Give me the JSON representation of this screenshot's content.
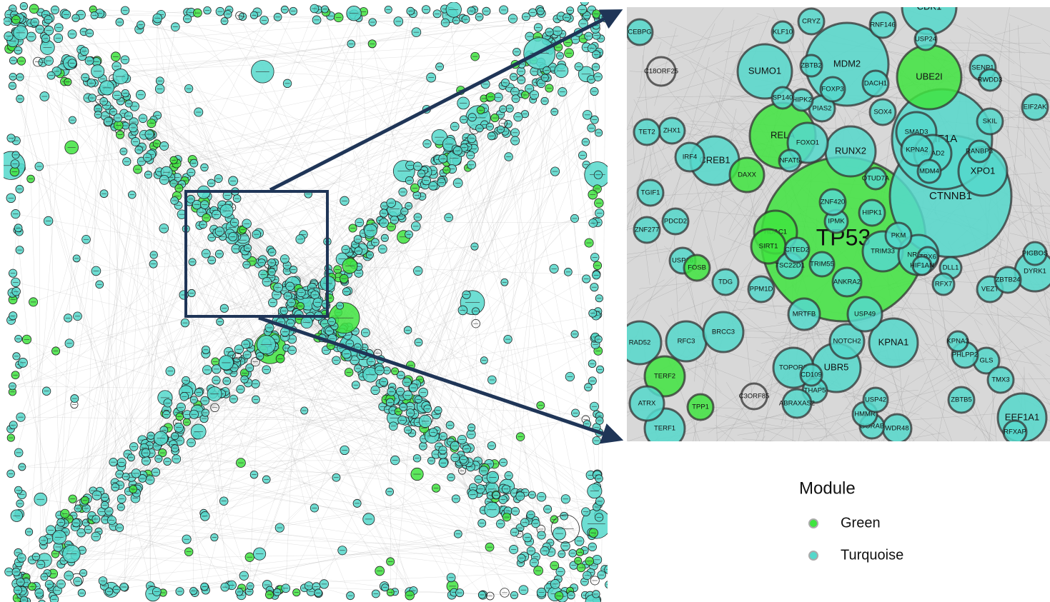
{
  "modules": [
    {
      "name": "Green",
      "color": "#3fe43f"
    },
    {
      "name": "Turquoise",
      "color": "#55d8cb"
    }
  ],
  "legend": {
    "title": "Module",
    "items": [
      {
        "name": "Green",
        "color": "#3fe43f"
      },
      {
        "name": "Turquoise",
        "color": "#55d8cb"
      }
    ]
  },
  "nodes": [
    {
      "label": "TP53",
      "module": 0
    },
    {
      "label": "CTNNB1",
      "module": 1
    },
    {
      "label": "HIF1A",
      "module": 1
    },
    {
      "label": "MDM2",
      "module": 1
    },
    {
      "label": "UBE2I",
      "module": 0
    },
    {
      "label": "RELA",
      "module": 0
    },
    {
      "label": "SUMO1",
      "module": 1
    },
    {
      "label": "RUNX2",
      "module": 1
    },
    {
      "label": "CREB1",
      "module": 1
    },
    {
      "label": "XPO1",
      "module": 1
    },
    {
      "label": "KPNA1",
      "module": 1
    },
    {
      "label": "UBR5",
      "module": 1
    },
    {
      "label": "EEF1A1",
      "module": 1
    },
    {
      "label": "CDK1",
      "module": 1
    },
    {
      "label": "FOXO1",
      "module": 1
    },
    {
      "label": "SMAD3",
      "module": 1
    },
    {
      "label": "SMAD2",
      "module": 1
    },
    {
      "label": "HDAC1",
      "module": 0
    },
    {
      "label": "TRIM33",
      "module": 1
    },
    {
      "label": "NR3C1",
      "module": 1
    },
    {
      "label": "TOPORS",
      "module": 1
    },
    {
      "label": "RAD52",
      "module": 1
    },
    {
      "label": "DYRK1",
      "module": 1
    },
    {
      "label": "TERF2",
      "module": 0
    },
    {
      "label": "TERF1",
      "module": 1
    },
    {
      "label": "RFC3",
      "module": 1
    },
    {
      "label": "BRCC3",
      "module": 1
    },
    {
      "label": "ATRX",
      "module": 1
    },
    {
      "label": "SIRT1",
      "module": 0
    },
    {
      "label": "DAXX",
      "module": 0
    },
    {
      "label": "KPNA2",
      "module": 1
    },
    {
      "label": "NOTCH2",
      "module": 1
    },
    {
      "label": "USP49",
      "module": 1
    },
    {
      "label": "MRTFB",
      "module": 1
    },
    {
      "label": "ANKRA2",
      "module": 1
    },
    {
      "label": "IRF4",
      "module": 1
    },
    {
      "label": "ZHX1",
      "module": 1
    },
    {
      "label": "TET2",
      "module": 1
    },
    {
      "label": "TGIF1",
      "module": 1
    },
    {
      "label": "ZNF277",
      "module": 1
    },
    {
      "label": "PDCD2",
      "module": 1
    },
    {
      "label": "USP16",
      "module": 1
    },
    {
      "label": "FOSB",
      "module": 0
    },
    {
      "label": "TDG",
      "module": 1
    },
    {
      "label": "PPM1D",
      "module": 1
    },
    {
      "label": "TSC22D1",
      "module": 1
    },
    {
      "label": "CITED2",
      "module": 1
    },
    {
      "label": "TRIM55",
      "module": 1
    },
    {
      "label": "IPMK",
      "module": 1
    },
    {
      "label": "ZNF420",
      "module": 1
    },
    {
      "label": "HIPK1",
      "module": 1
    },
    {
      "label": "PKM",
      "module": 1
    },
    {
      "label": "MDM4",
      "module": 1
    },
    {
      "label": "TBX6",
      "module": 1
    },
    {
      "label": "DLL1",
      "module": 1
    },
    {
      "label": "RFX7",
      "module": 1
    },
    {
      "label": "VEZT",
      "module": 1
    },
    {
      "label": "ZBTB24",
      "module": 1
    },
    {
      "label": "PIGBOS",
      "module": 1
    },
    {
      "label": "GLS",
      "module": 1
    },
    {
      "label": "TMX3",
      "module": 1
    },
    {
      "label": "PHLPP2",
      "module": 1
    },
    {
      "label": "KPNA3",
      "module": 1
    },
    {
      "label": "ZBTB5",
      "module": 1
    },
    {
      "label": "WDR48",
      "module": 1
    },
    {
      "label": "GORAB",
      "module": 1
    },
    {
      "label": "HMMR",
      "module": 1
    },
    {
      "label": "USP42",
      "module": 1
    },
    {
      "label": "THAP5",
      "module": 1
    },
    {
      "label": "ABRAXAS2",
      "module": 1
    },
    {
      "label": "C3ORF85",
      "module": null
    },
    {
      "label": "C18ORF25",
      "module": null
    },
    {
      "label": "CEBPG",
      "module": 1
    },
    {
      "label": "CRYZ",
      "module": 1
    },
    {
      "label": "KLF10",
      "module": 1
    },
    {
      "label": "RNF146",
      "module": 1
    },
    {
      "label": "USP24",
      "module": 1
    },
    {
      "label": "PIAS2",
      "module": 1
    },
    {
      "label": "SOX4",
      "module": 1
    },
    {
      "label": "DACH1",
      "module": 1
    },
    {
      "label": "SENP1",
      "module": 1
    },
    {
      "label": "RWDD3",
      "module": 1
    },
    {
      "label": "SKIL",
      "module": 1
    },
    {
      "label": "EIF2AK",
      "module": 1
    },
    {
      "label": "RANBP3",
      "module": 1
    },
    {
      "label": "NFAT5",
      "module": 1
    },
    {
      "label": "OTUD7A",
      "module": 1
    },
    {
      "label": "TPP1",
      "module": 0
    },
    {
      "label": "CD109",
      "module": 1
    },
    {
      "label": "HIPK2",
      "module": 1
    },
    {
      "label": "SP140",
      "module": 1
    },
    {
      "label": "FOXP3",
      "module": 1
    },
    {
      "label": "ZBTB2",
      "module": 1
    },
    {
      "label": "RFXAP",
      "module": 1
    },
    {
      "label": "HIF1AN",
      "module": 1
    }
  ]
}
